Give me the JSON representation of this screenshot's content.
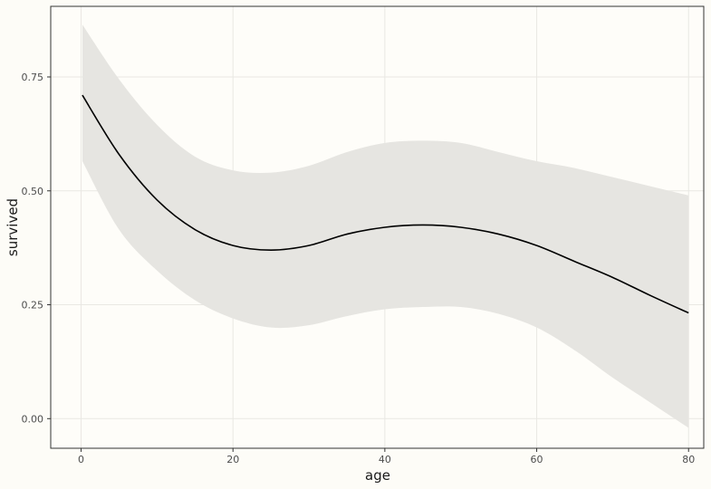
{
  "chart_data": {
    "type": "line",
    "xlabel": "age",
    "ylabel": "survived",
    "xlim": [
      -4,
      82
    ],
    "ylim": [
      -0.065,
      0.905
    ],
    "x_ticks": [
      0,
      20,
      40,
      60,
      80
    ],
    "x_tick_labels": [
      "0",
      "20",
      "40",
      "60",
      "80"
    ],
    "y_ticks": [
      0.0,
      0.25,
      0.5,
      0.75
    ],
    "y_tick_labels": [
      "0.00",
      "0.25",
      "0.50",
      "0.75"
    ],
    "grid": true,
    "legend": false,
    "series": [
      {
        "x": [
          0.17,
          5,
          10,
          15,
          20,
          25,
          30,
          35,
          40,
          45,
          50,
          55,
          60,
          65,
          70,
          75,
          80
        ],
        "y": [
          0.71,
          0.58,
          0.48,
          0.415,
          0.38,
          0.37,
          0.38,
          0.405,
          0.42,
          0.425,
          0.42,
          0.405,
          0.38,
          0.345,
          0.31,
          0.27,
          0.232
        ],
        "ymin": [
          0.565,
          0.415,
          0.325,
          0.26,
          0.22,
          0.2,
          0.205,
          0.225,
          0.24,
          0.245,
          0.245,
          0.23,
          0.2,
          0.15,
          0.09,
          0.035,
          -0.02
        ],
        "ymax": [
          0.865,
          0.745,
          0.645,
          0.575,
          0.545,
          0.54,
          0.555,
          0.585,
          0.605,
          0.61,
          0.605,
          0.585,
          0.565,
          0.55,
          0.53,
          0.51,
          0.49
        ]
      }
    ]
  },
  "colors": {
    "background": "#fdfcf7",
    "panel": "#fefdf9",
    "grid": "#e9e8e3",
    "ribbon": "#e6e5e1",
    "line": "#000000",
    "frame": "#333333"
  }
}
